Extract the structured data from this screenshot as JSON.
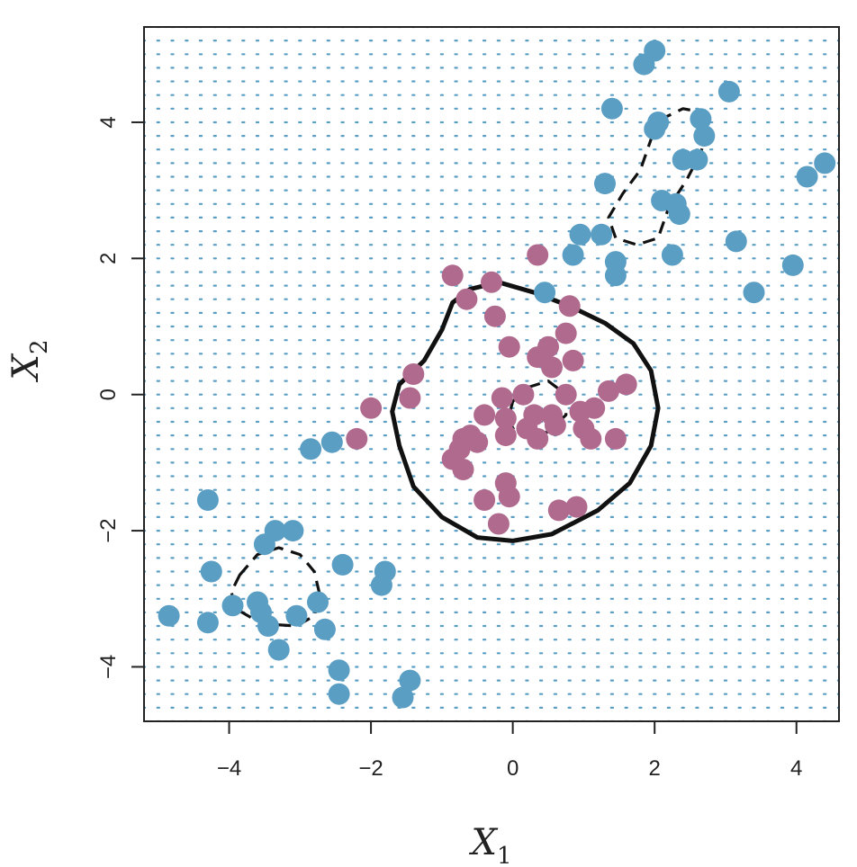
{
  "chart_data": {
    "type": "scatter",
    "title": "",
    "xlabel": "X",
    "xlabel_sub": "1",
    "ylabel": "X",
    "ylabel_sub": "2",
    "xlim": [
      -5.2,
      4.6
    ],
    "ylim": [
      -4.8,
      5.4
    ],
    "xticks": [
      -4,
      -2,
      0,
      2,
      4
    ],
    "yticks": [
      -4,
      -2,
      0,
      2,
      4
    ],
    "xtick_labels": [
      "−4",
      "−2",
      "0",
      "2",
      "4"
    ],
    "ytick_labels": [
      "−4",
      "−2",
      "0",
      "2",
      "4"
    ],
    "grid_background": "dotted",
    "colors": {
      "blue": "#5b9ec4",
      "purple": "#b06a8e",
      "boundary": "#111111",
      "grid_dot": "#5b9ec4"
    },
    "series": [
      {
        "color": "blue",
        "points": [
          [
            2.0,
            5.05
          ],
          [
            1.85,
            4.85
          ],
          [
            3.05,
            4.45
          ],
          [
            1.4,
            4.2
          ],
          [
            2.05,
            4.0
          ],
          [
            2.0,
            3.9
          ],
          [
            2.65,
            4.05
          ],
          [
            2.7,
            3.8
          ],
          [
            2.4,
            3.45
          ],
          [
            2.6,
            3.45
          ],
          [
            4.4,
            3.4
          ],
          [
            4.15,
            3.2
          ],
          [
            1.3,
            3.1
          ],
          [
            2.1,
            2.85
          ],
          [
            2.3,
            2.8
          ],
          [
            2.35,
            2.65
          ],
          [
            0.95,
            2.35
          ],
          [
            1.25,
            2.35
          ],
          [
            3.15,
            2.25
          ],
          [
            0.85,
            2.05
          ],
          [
            2.25,
            2.05
          ],
          [
            1.45,
            1.95
          ],
          [
            1.45,
            1.75
          ],
          [
            3.95,
            1.9
          ],
          [
            3.4,
            1.5
          ],
          [
            0.45,
            1.5
          ],
          [
            -2.55,
            -0.7
          ],
          [
            -2.85,
            -0.8
          ],
          [
            -4.3,
            -1.55
          ],
          [
            -3.35,
            -2.0
          ],
          [
            -3.1,
            -2.0
          ],
          [
            -3.5,
            -2.2
          ],
          [
            -2.4,
            -2.5
          ],
          [
            -4.25,
            -2.6
          ],
          [
            -1.8,
            -2.6
          ],
          [
            -1.85,
            -2.8
          ],
          [
            -3.6,
            -3.05
          ],
          [
            -2.75,
            -3.05
          ],
          [
            -3.95,
            -3.1
          ],
          [
            -3.55,
            -3.2
          ],
          [
            -4.85,
            -3.25
          ],
          [
            -3.05,
            -3.25
          ],
          [
            -4.3,
            -3.35
          ],
          [
            -3.45,
            -3.4
          ],
          [
            -2.65,
            -3.45
          ],
          [
            -3.3,
            -3.75
          ],
          [
            -2.45,
            -4.05
          ],
          [
            -1.45,
            -4.2
          ],
          [
            -2.45,
            -4.4
          ],
          [
            -1.55,
            -4.45
          ]
        ]
      },
      {
        "color": "purple",
        "points": [
          [
            0.35,
            2.05
          ],
          [
            -0.85,
            1.75
          ],
          [
            -0.3,
            1.65
          ],
          [
            -0.65,
            1.4
          ],
          [
            0.8,
            1.3
          ],
          [
            -0.25,
            1.15
          ],
          [
            0.75,
            0.9
          ],
          [
            -0.05,
            0.7
          ],
          [
            0.5,
            0.7
          ],
          [
            0.35,
            0.55
          ],
          [
            0.85,
            0.5
          ],
          [
            0.55,
            0.4
          ],
          [
            -1.4,
            0.3
          ],
          [
            1.6,
            0.15
          ],
          [
            1.35,
            0.05
          ],
          [
            0.15,
            0.0
          ],
          [
            0.75,
            0.0
          ],
          [
            -1.45,
            -0.05
          ],
          [
            -0.15,
            -0.05
          ],
          [
            0.95,
            -0.25
          ],
          [
            1.15,
            -0.2
          ],
          [
            0.3,
            -0.3
          ],
          [
            0.55,
            -0.3
          ],
          [
            -0.4,
            -0.3
          ],
          [
            -0.1,
            -0.35
          ],
          [
            0.6,
            -0.45
          ],
          [
            1.0,
            -0.5
          ],
          [
            0.2,
            -0.5
          ],
          [
            -2.0,
            -0.2
          ],
          [
            -2.2,
            -0.65
          ],
          [
            -0.6,
            -0.6
          ],
          [
            -0.7,
            -0.65
          ],
          [
            -0.5,
            -0.7
          ],
          [
            -0.1,
            -0.6
          ],
          [
            0.35,
            -0.65
          ],
          [
            1.1,
            -0.65
          ],
          [
            1.45,
            -0.65
          ],
          [
            -0.75,
            -0.8
          ],
          [
            -0.85,
            -0.95
          ],
          [
            -0.7,
            -1.1
          ],
          [
            -0.1,
            -1.3
          ],
          [
            -0.05,
            -1.5
          ],
          [
            -0.4,
            -1.55
          ],
          [
            0.65,
            -1.7
          ],
          [
            0.9,
            -1.65
          ],
          [
            -0.2,
            -1.9
          ]
        ]
      }
    ],
    "boundaries": [
      {
        "style": "solid",
        "points": [
          [
            -0.6,
            1.55
          ],
          [
            -0.2,
            1.65
          ],
          [
            0.3,
            1.5
          ],
          [
            0.8,
            1.3
          ],
          [
            1.3,
            1.05
          ],
          [
            1.7,
            0.75
          ],
          [
            1.95,
            0.35
          ],
          [
            2.05,
            -0.2
          ],
          [
            1.95,
            -0.75
          ],
          [
            1.65,
            -1.3
          ],
          [
            1.2,
            -1.7
          ],
          [
            0.55,
            -2.05
          ],
          [
            0.0,
            -2.15
          ],
          [
            -0.5,
            -2.1
          ],
          [
            -1.0,
            -1.8
          ],
          [
            -1.4,
            -1.35
          ],
          [
            -1.6,
            -0.75
          ],
          [
            -1.7,
            -0.25
          ],
          [
            -1.6,
            0.15
          ],
          [
            -1.25,
            0.5
          ],
          [
            -1.0,
            0.95
          ],
          [
            -0.85,
            1.35
          ],
          [
            -0.6,
            1.55
          ]
        ]
      },
      {
        "style": "dashed",
        "points": [
          [
            0.0,
            -0.1
          ],
          [
            0.2,
            0.1
          ],
          [
            0.5,
            0.2
          ],
          [
            0.75,
            0.0
          ],
          [
            0.75,
            -0.3
          ],
          [
            0.5,
            -0.55
          ],
          [
            0.2,
            -0.6
          ],
          [
            0.0,
            -0.5
          ],
          [
            -0.05,
            -0.3
          ],
          [
            0.0,
            -0.1
          ]
        ]
      },
      {
        "style": "dashed",
        "points": [
          [
            1.95,
            3.75
          ],
          [
            2.1,
            4.05
          ],
          [
            2.4,
            4.2
          ],
          [
            2.65,
            4.15
          ],
          [
            2.75,
            3.9
          ],
          [
            2.65,
            3.55
          ],
          [
            2.45,
            3.15
          ],
          [
            2.2,
            2.75
          ],
          [
            2.05,
            2.3
          ],
          [
            1.75,
            2.2
          ],
          [
            1.45,
            2.3
          ],
          [
            1.35,
            2.6
          ],
          [
            1.55,
            2.95
          ],
          [
            1.8,
            3.3
          ],
          [
            1.95,
            3.75
          ]
        ]
      },
      {
        "style": "dashed",
        "points": [
          [
            -3.85,
            -2.65
          ],
          [
            -3.6,
            -2.35
          ],
          [
            -3.3,
            -2.25
          ],
          [
            -3.0,
            -2.35
          ],
          [
            -2.8,
            -2.6
          ],
          [
            -2.72,
            -2.95
          ],
          [
            -2.8,
            -3.25
          ],
          [
            -3.05,
            -3.4
          ],
          [
            -3.35,
            -3.38
          ],
          [
            -3.65,
            -3.3
          ],
          [
            -3.9,
            -3.15
          ],
          [
            -3.97,
            -2.9
          ],
          [
            -3.85,
            -2.65
          ]
        ]
      }
    ]
  }
}
